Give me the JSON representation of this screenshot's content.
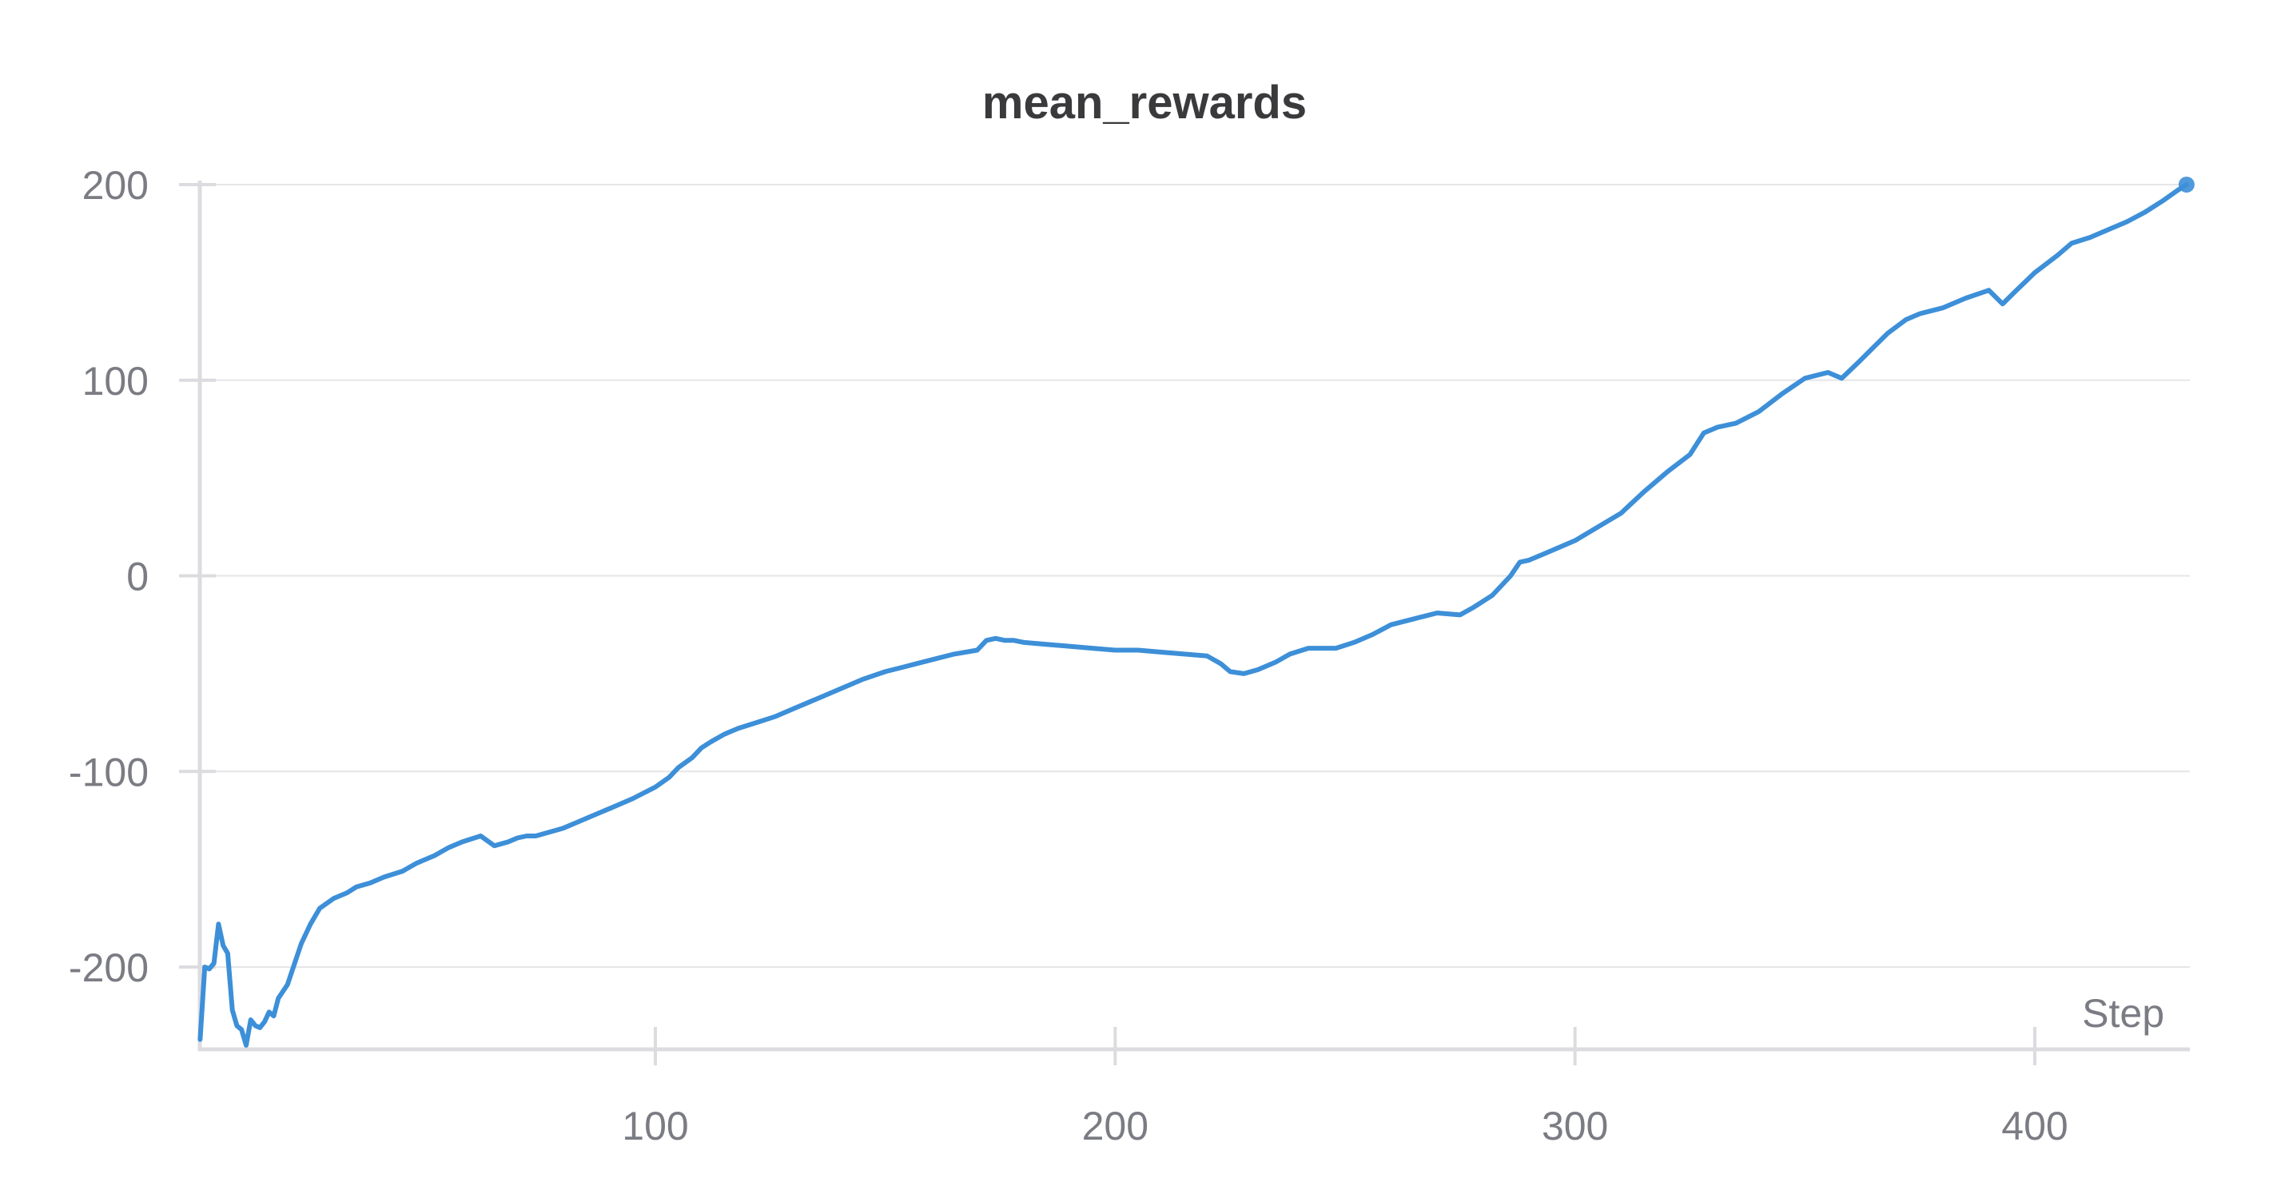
{
  "chart_data": {
    "type": "line",
    "title": "mean_rewards",
    "xlabel": "Step",
    "ylabel": "",
    "xlim": [
      1,
      433
    ],
    "ylim": [
      -240,
      200
    ],
    "x_ticks": [
      100,
      200,
      300,
      400
    ],
    "x_tick_labels": [
      "100",
      "200",
      "300",
      "400"
    ],
    "y_ticks": [
      200,
      100,
      0,
      -100,
      -200
    ],
    "y_tick_labels": [
      "200",
      "100",
      "0",
      "-100",
      "-200"
    ],
    "grid": true,
    "legend": "none",
    "series": [
      {
        "color": "#3d8fd8",
        "end_marker": true,
        "x": [
          1,
          2,
          3,
          4,
          5,
          6,
          7,
          8,
          9,
          10,
          11,
          12,
          13,
          14,
          15,
          16,
          17,
          18,
          20,
          22,
          23,
          25,
          27,
          30,
          33,
          35,
          38,
          41,
          45,
          48,
          52,
          55,
          58,
          62,
          65,
          68,
          70,
          72,
          74,
          77,
          80,
          83,
          86,
          90,
          95,
          100,
          103,
          105,
          108,
          110,
          112,
          115,
          118,
          122,
          126,
          130,
          135,
          140,
          145,
          150,
          155,
          160,
          165,
          170,
          172,
          174,
          176,
          178,
          180,
          185,
          190,
          195,
          200,
          205,
          210,
          215,
          220,
          223,
          225,
          228,
          231,
          235,
          238,
          242,
          248,
          252,
          256,
          260,
          265,
          270,
          275,
          278,
          282,
          286,
          288,
          290,
          293,
          296,
          300,
          305,
          310,
          315,
          320,
          325,
          328,
          331,
          335,
          340,
          345,
          350,
          355,
          358,
          362,
          365,
          368,
          372,
          375,
          380,
          385,
          390,
          393,
          396,
          400,
          405,
          408,
          412,
          416,
          420,
          424,
          428,
          431,
          433
        ],
        "y": [
          -237,
          -200,
          -201,
          -198,
          -178,
          -189,
          -193,
          -222,
          -230,
          -232,
          -240,
          -227,
          -230,
          -231,
          -228,
          -223,
          -225,
          -216,
          -209,
          -195,
          -188,
          -178,
          -170,
          -165,
          -162,
          -159,
          -157,
          -154,
          -151,
          -147,
          -143,
          -139,
          -136,
          -133,
          -138,
          -136,
          -134,
          -133,
          -133,
          -131,
          -129,
          -126,
          -123,
          -119,
          -114,
          -108,
          -103,
          -98,
          -93,
          -88,
          -85,
          -81,
          -78,
          -75,
          -72,
          -68,
          -63,
          -58,
          -53,
          -49,
          -46,
          -43,
          -40,
          -38,
          -33,
          -32,
          -33,
          -33,
          -34,
          -35,
          -36,
          -37,
          -38,
          -38,
          -39,
          -40,
          -41,
          -45,
          -49,
          -50,
          -48,
          -44,
          -40,
          -37,
          -37,
          -34,
          -30,
          -25,
          -22,
          -19,
          -20,
          -16,
          -10,
          0,
          7,
          8,
          11,
          14,
          18,
          25,
          32,
          43,
          53,
          62,
          73,
          76,
          78,
          84,
          93,
          101,
          104,
          101,
          110,
          117,
          124,
          131,
          134,
          137,
          142,
          146,
          139,
          146,
          155,
          164,
          170,
          173,
          177,
          181,
          186,
          192,
          197,
          200
        ]
      }
    ]
  }
}
